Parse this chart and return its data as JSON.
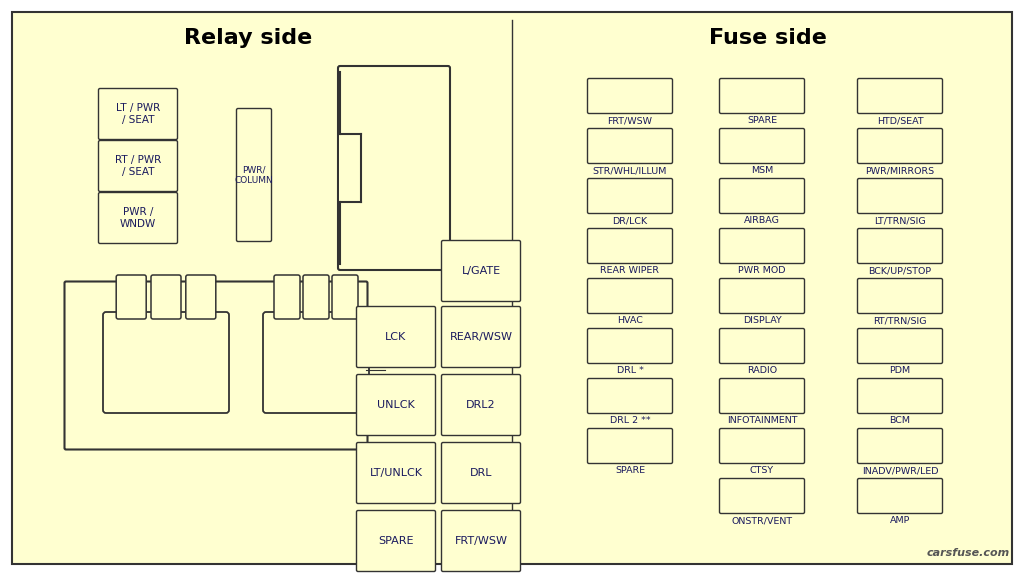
{
  "bg": "#ffffd0",
  "outer_bg": "#ffffff",
  "bc": "#333333",
  "tc": "#1a1a5e",
  "title_color": "#000000",
  "relay_title": "Relay side",
  "fuse_title": "Fuse side",
  "watermark": "carsfuse.com",
  "relay_small_labels": [
    "LT / PWR\n/ SEAT",
    "RT / PWR\n/ SEAT",
    "PWR /\nWNDW"
  ],
  "relay_grid_left": [
    "LCK",
    "UNLCK",
    "LT/UNLCK",
    "SPARE"
  ],
  "relay_grid_right": [
    "REAR/WSW",
    "DRL2",
    "DRL",
    "FRT/WSW"
  ],
  "lgate_label": "L/GATE",
  "pwr_col_label": "PWR/\nCOLUMN",
  "col1_fuses": [
    "FRT/WSW",
    "STR/WHL/ILLUM",
    "DR/LCK",
    "REAR WIPER",
    "HVAC",
    "DRL *",
    "DRL 2 **",
    "SPARE"
  ],
  "col2_fuses": [
    "SPARE",
    "MSM",
    "AIRBAG",
    "PWR MOD",
    "DISPLAY",
    "RADIO",
    "INFOTAINMENT",
    "CTSY",
    "ONSTR/VENT"
  ],
  "col3_fuses": [
    "HTD/SEAT",
    "PWR/MIRRORS",
    "LT/TRN/SIG",
    "BCK/UP/STOP",
    "RT/TRN/SIG",
    "PDM",
    "BCM",
    "INADV/PWR/LED",
    "AMP"
  ]
}
